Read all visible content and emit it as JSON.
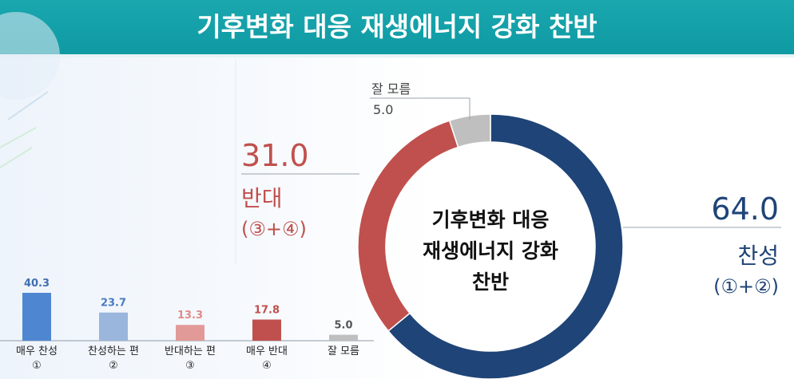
{
  "title": "기후변화 대응 재생에너지 강화 찬반",
  "colors": {
    "header": "#14a0a8",
    "agree": "#1f4477",
    "oppose": "#c0504d",
    "unknown": "#bfbfbf"
  },
  "chart_data": [
    {
      "type": "pie",
      "variant": "donut",
      "center_label": [
        "기후변화 대응",
        "재생에너지 강화",
        "찬반"
      ],
      "slices": [
        {
          "label": "찬성",
          "sublabel": "(①+②)",
          "value": 64.0,
          "value_text": "64.0",
          "color": "#1f4477"
        },
        {
          "label": "반대",
          "sublabel": "(③+④)",
          "value": 31.0,
          "value_text": "31.0",
          "color": "#c0504d"
        },
        {
          "label": "잘 모름",
          "sublabel": "",
          "value": 5.0,
          "value_text": "5.0",
          "color": "#bfbfbf"
        }
      ]
    },
    {
      "type": "bar",
      "categories": [
        {
          "line1": "매우 찬성",
          "line2": "①"
        },
        {
          "line1": "찬성하는 편",
          "line2": "②"
        },
        {
          "line1": "반대하는 편",
          "line2": "③"
        },
        {
          "line1": "매우 반대",
          "line2": "④"
        },
        {
          "line1": "잘 모름",
          "line2": ""
        }
      ],
      "values": [
        40.3,
        23.7,
        13.3,
        17.8,
        5.0
      ],
      "value_labels": [
        "40.3",
        "23.7",
        "13.3",
        "17.8",
        "5.0"
      ],
      "colors": [
        "#4f86d1",
        "#9bb6dd",
        "#e29a98",
        "#c0504d",
        "#bfbfbf"
      ],
      "label_colors": [
        "#3f6fb0",
        "#4a7bc0",
        "#e08a88",
        "#c0504d",
        "#555555"
      ],
      "ylim": [
        0,
        45
      ]
    }
  ]
}
